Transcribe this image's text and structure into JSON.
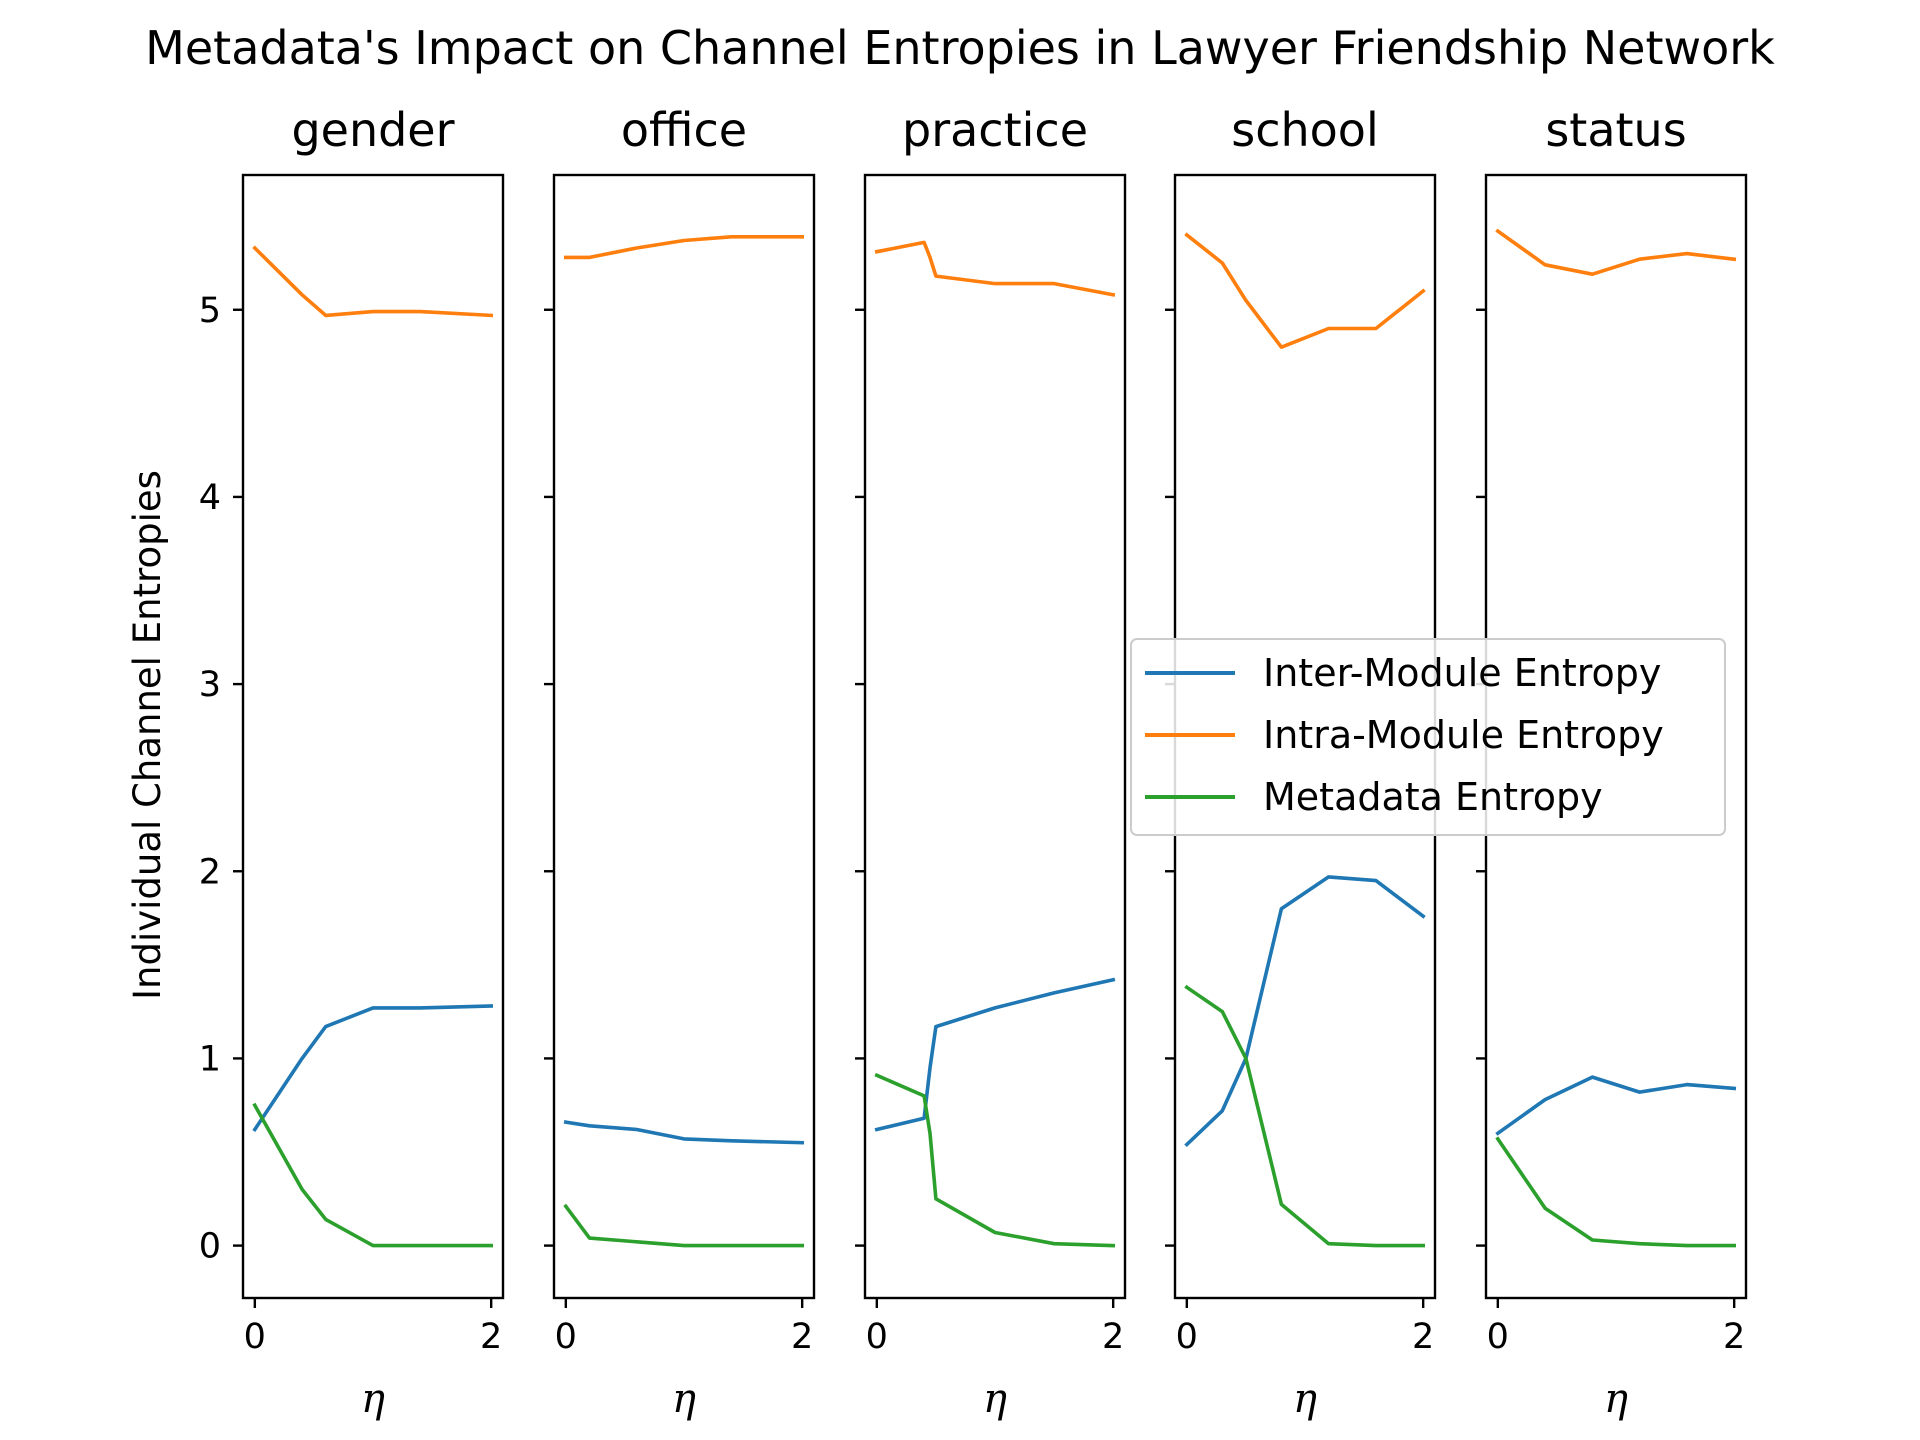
{
  "chart_data": {
    "type": "line",
    "title": "Metadata's Impact on Channel Entropies in Lawyer Friendship Network",
    "ylabel": "Individual Channel Entropies",
    "xlabel": "η",
    "xlim": [
      -0.1,
      2.1
    ],
    "ylim": [
      -0.28,
      5.72
    ],
    "x_ticks": [
      0,
      2
    ],
    "y_ticks": [
      0,
      1,
      2,
      3,
      4,
      5
    ],
    "grid": false,
    "legend_position": "right (overlapping school/status panels)",
    "legend": [
      {
        "label": "Inter-Module Entropy",
        "color": "#1f77b4"
      },
      {
        "label": "Intra-Module Entropy",
        "color": "#ff7f0e"
      },
      {
        "label": "Metadata Entropy",
        "color": "#2ca02c"
      }
    ],
    "panels": [
      {
        "title": "gender",
        "x": [
          0,
          0.4,
          0.6,
          1.0,
          1.4,
          2.0
        ],
        "series": [
          {
            "name": "Inter-Module Entropy",
            "color": "#1f77b4",
            "values": [
              0.62,
              1.0,
              1.17,
              1.27,
              1.27,
              1.28
            ]
          },
          {
            "name": "Intra-Module Entropy",
            "color": "#ff7f0e",
            "values": [
              5.33,
              5.08,
              4.97,
              4.99,
              4.99,
              4.97
            ]
          },
          {
            "name": "Metadata Entropy",
            "color": "#2ca02c",
            "values": [
              0.75,
              0.3,
              0.14,
              0.0,
              0.0,
              0.0
            ]
          }
        ]
      },
      {
        "title": "office",
        "x": [
          0,
          0.2,
          0.6,
          1.0,
          1.4,
          2.0
        ],
        "series": [
          {
            "name": "Inter-Module Entropy",
            "color": "#1f77b4",
            "values": [
              0.66,
              0.64,
              0.62,
              0.57,
              0.56,
              0.55
            ]
          },
          {
            "name": "Intra-Module Entropy",
            "color": "#ff7f0e",
            "values": [
              5.28,
              5.28,
              5.33,
              5.37,
              5.39,
              5.39
            ]
          },
          {
            "name": "Metadata Entropy",
            "color": "#2ca02c",
            "values": [
              0.21,
              0.04,
              0.02,
              0.0,
              0.0,
              0.0
            ]
          }
        ]
      },
      {
        "title": "practice",
        "x": [
          0,
          0.4,
          0.45,
          0.5,
          1.0,
          1.5,
          2.0
        ],
        "series": [
          {
            "name": "Inter-Module Entropy",
            "color": "#1f77b4",
            "values": [
              0.62,
              0.68,
              0.95,
              1.17,
              1.27,
              1.35,
              1.42
            ]
          },
          {
            "name": "Intra-Module Entropy",
            "color": "#ff7f0e",
            "values": [
              5.31,
              5.36,
              5.28,
              5.18,
              5.14,
              5.14,
              5.08
            ]
          },
          {
            "name": "Metadata Entropy",
            "color": "#2ca02c",
            "values": [
              0.91,
              0.8,
              0.6,
              0.25,
              0.07,
              0.01,
              0.0
            ]
          }
        ]
      },
      {
        "title": "school",
        "x": [
          0,
          0.3,
          0.5,
          0.8,
          1.2,
          1.6,
          2.0
        ],
        "series": [
          {
            "name": "Inter-Module Entropy",
            "color": "#1f77b4",
            "values": [
              0.54,
              0.72,
              1.0,
              1.8,
              1.97,
              1.95,
              1.76
            ]
          },
          {
            "name": "Intra-Module Entropy",
            "color": "#ff7f0e",
            "values": [
              5.4,
              5.25,
              5.05,
              4.8,
              4.9,
              4.9,
              5.1
            ]
          },
          {
            "name": "Metadata Entropy",
            "color": "#2ca02c",
            "values": [
              1.38,
              1.25,
              1.0,
              0.22,
              0.01,
              0.0,
              0.0
            ]
          }
        ]
      },
      {
        "title": "status",
        "x": [
          0,
          0.4,
          0.8,
          1.2,
          1.6,
          2.0
        ],
        "series": [
          {
            "name": "Inter-Module Entropy",
            "color": "#1f77b4",
            "values": [
              0.6,
              0.78,
              0.9,
              0.82,
              0.86,
              0.84
            ]
          },
          {
            "name": "Intra-Module Entropy",
            "color": "#ff7f0e",
            "values": [
              5.42,
              5.24,
              5.19,
              5.27,
              5.3,
              5.27
            ]
          },
          {
            "name": "Metadata Entropy",
            "color": "#2ca02c",
            "values": [
              0.57,
              0.2,
              0.03,
              0.01,
              0.0,
              0.0
            ]
          }
        ]
      }
    ]
  }
}
